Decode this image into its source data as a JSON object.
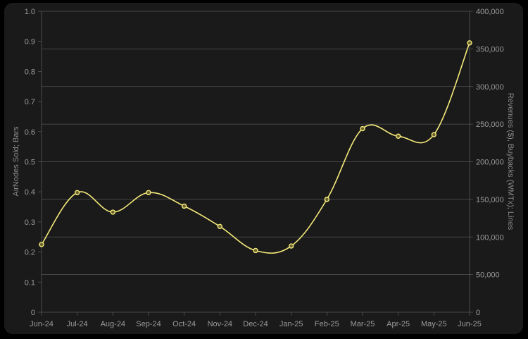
{
  "chart_data": {
    "type": "line",
    "categories": [
      "Jun-24",
      "Jul-24",
      "Aug-24",
      "Sep-24",
      "Oct-24",
      "Nov-24",
      "Dec-24",
      "Jan-25",
      "Feb-25",
      "Mar-25",
      "Apr-25",
      "May-25",
      "Jun-25"
    ],
    "series": [
      {
        "axis": "right",
        "values": [
          90000,
          159000,
          133000,
          159000,
          141000,
          114000,
          82000,
          88000,
          150000,
          244000,
          234000,
          236000,
          358000
        ],
        "color": "#f4e97a"
      }
    ],
    "left_axis": {
      "label": "AirNodes Sold; Bars",
      "ylim": [
        0,
        1.0
      ],
      "ticks": [
        "0",
        "0.1",
        "0.2",
        "0.3",
        "0.4",
        "0.5",
        "0.6",
        "0.7",
        "0.8",
        "0.9",
        "1.0"
      ]
    },
    "right_axis": {
      "label": "Revenues ($), Buybacks (WMTx); Lines",
      "ylim": [
        0,
        400000
      ],
      "ticks": [
        "0",
        "50,000",
        "100,000",
        "150,000",
        "200,000",
        "250,000",
        "300,000",
        "350,000",
        "400,000"
      ]
    },
    "grid": true,
    "legend": "none"
  },
  "colors": {
    "background": "#1a1a1a",
    "line": "#f4e97a",
    "grid": "#555555"
  }
}
